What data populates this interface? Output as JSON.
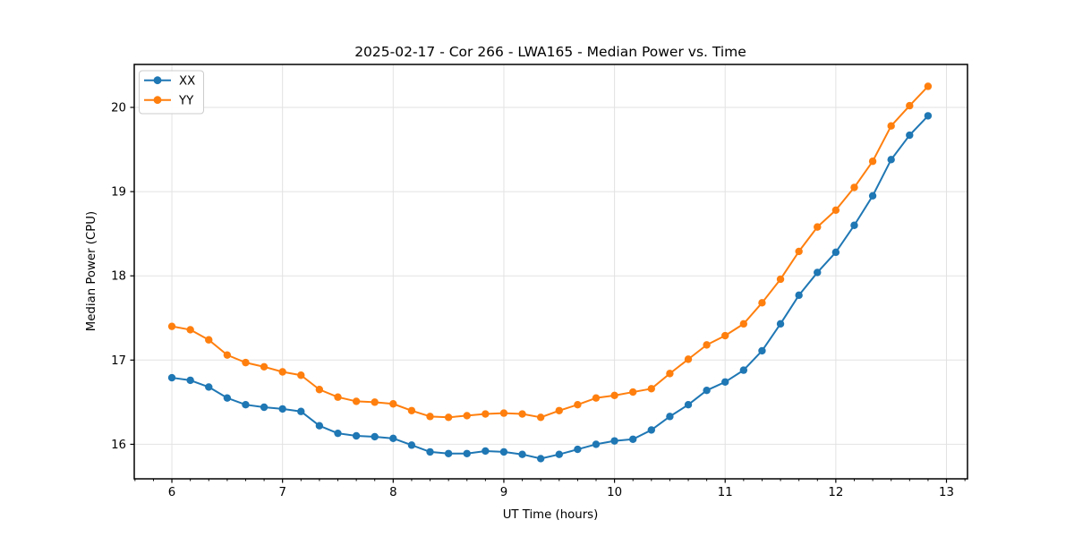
{
  "figure": {
    "title": "2025-02-17 - Cor 266 - LWA165 - Median Power vs. Time",
    "xlabel": "UT Time (hours)",
    "ylabel": "Median Power (CPU)"
  },
  "legend": {
    "position": "upper-left",
    "entries": [
      {
        "label": "XX",
        "color": "#1f77b4"
      },
      {
        "label": "YY",
        "color": "#ff7f0e"
      }
    ]
  },
  "chart_data": {
    "type": "line",
    "title": "2025-02-17 - Cor 266 - LWA165 - Median Power vs. Time",
    "xlabel": "UT Time (hours)",
    "ylabel": "Median Power (CPU)",
    "grid": true,
    "legend_position": "upper-left",
    "marker": "circle",
    "xlim": [
      5.66,
      13.19
    ],
    "ylim": [
      15.59,
      20.51
    ],
    "xticks": [
      6,
      7,
      8,
      9,
      10,
      11,
      12,
      13
    ],
    "yticks": [
      16,
      17,
      18,
      19,
      20
    ],
    "x_minor_step": 0.16667,
    "x": [
      6.0,
      6.1667,
      6.3333,
      6.5,
      6.6667,
      6.8333,
      7.0,
      7.1667,
      7.3333,
      7.5,
      7.6667,
      7.8333,
      8.0,
      8.1667,
      8.3333,
      8.5,
      8.6667,
      8.8333,
      9.0,
      9.1667,
      9.3333,
      9.5,
      9.6667,
      9.8333,
      10.0,
      10.1667,
      10.3333,
      10.5,
      10.6667,
      10.8333,
      11.0,
      11.1667,
      11.3333,
      11.5,
      11.6667,
      11.8333,
      12.0,
      12.1667,
      12.3333,
      12.5,
      12.6667,
      12.8333
    ],
    "series": [
      {
        "name": "XX",
        "color": "#1f77b4",
        "values": [
          16.79,
          16.76,
          16.68,
          16.55,
          16.47,
          16.44,
          16.42,
          16.39,
          16.22,
          16.13,
          16.1,
          16.09,
          16.07,
          15.99,
          15.91,
          15.89,
          15.89,
          15.92,
          15.91,
          15.88,
          15.83,
          15.88,
          15.94,
          16.0,
          16.04,
          16.06,
          16.17,
          16.33,
          16.47,
          16.64,
          16.74,
          16.88,
          17.11,
          17.43,
          17.77,
          18.04,
          18.28,
          18.6,
          18.95,
          19.38,
          19.67,
          19.9
        ]
      },
      {
        "name": "YY",
        "color": "#ff7f0e",
        "values": [
          17.4,
          17.36,
          17.24,
          17.06,
          16.97,
          16.92,
          16.86,
          16.82,
          16.65,
          16.56,
          16.51,
          16.5,
          16.48,
          16.4,
          16.33,
          16.32,
          16.34,
          16.36,
          16.37,
          16.36,
          16.32,
          16.4,
          16.47,
          16.55,
          16.58,
          16.62,
          16.66,
          16.84,
          17.01,
          17.18,
          17.29,
          17.43,
          17.68,
          17.96,
          18.29,
          18.58,
          18.78,
          19.05,
          19.36,
          19.78,
          20.02,
          20.25
        ]
      }
    ]
  }
}
